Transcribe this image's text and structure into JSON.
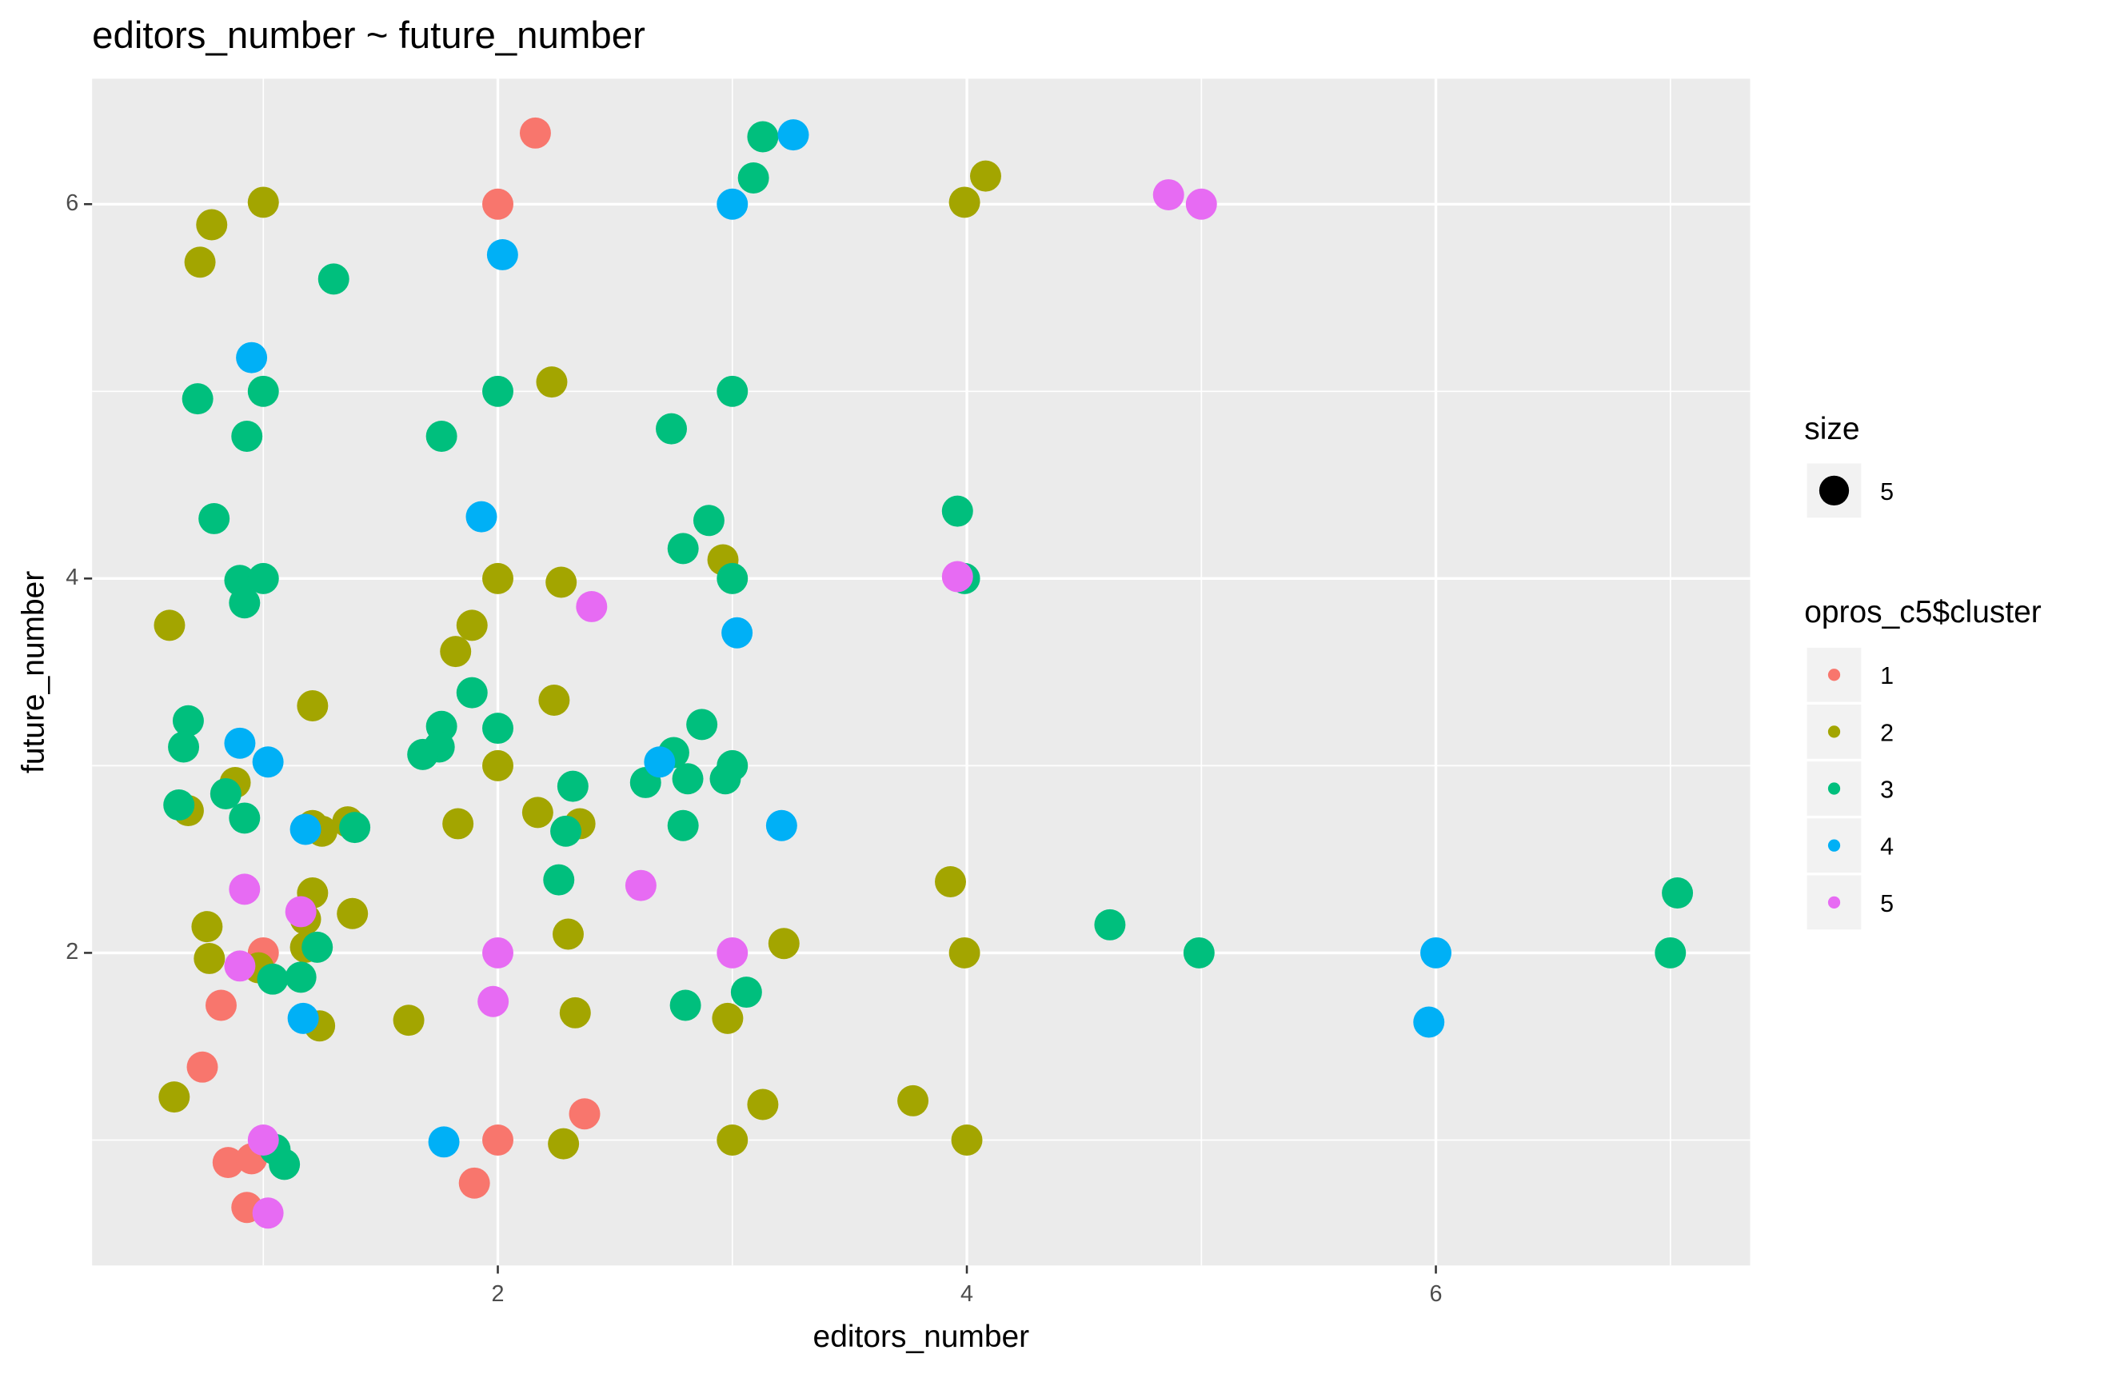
{
  "chart_data": {
    "type": "scatter",
    "title": "editors_number ~ future_number",
    "x_label": "editors_number",
    "y_label": "future_number",
    "xlim": [
      0.27,
      7.34
    ],
    "ylim": [
      0.33,
      6.67
    ],
    "xticks": [
      2,
      4,
      6
    ],
    "yticks": [
      2,
      4,
      6
    ],
    "grid": true,
    "size_legend": {
      "title": "size",
      "value": 5
    },
    "legend_title": "opros_c5$cluster",
    "series": [
      {
        "name": "1",
        "color": "#F8766D",
        "x": [
          2.16,
          2.0,
          1.0,
          0.82,
          0.74,
          0.85,
          0.95,
          0.93,
          1.9,
          2.0,
          2.37
        ],
        "values": [
          6.38,
          6.0,
          2.0,
          1.72,
          1.39,
          0.88,
          0.9,
          0.64,
          0.77,
          1.0,
          1.14
        ]
      },
      {
        "name": "2",
        "color": "#A3A500",
        "x": [
          1.0,
          0.78,
          0.73,
          0.6,
          2.23,
          2.0,
          2.27,
          1.89,
          1.82,
          1.21,
          2.24,
          2.0,
          0.88,
          0.68,
          2.17,
          1.83,
          2.35,
          1.21,
          1.25,
          1.36,
          1.21,
          1.38,
          0.76,
          0.77,
          1.18,
          1.18,
          0.98,
          1.24,
          1.62,
          2.33,
          2.3,
          2.96,
          3.99,
          4.08,
          3.93,
          3.99,
          3.22,
          2.98,
          3.0,
          3.13,
          3.77,
          4.0,
          2.28,
          0.62
        ],
        "values": [
          6.01,
          5.89,
          5.69,
          3.75,
          5.05,
          4.0,
          3.98,
          3.75,
          3.61,
          3.32,
          3.35,
          3.0,
          2.91,
          2.76,
          2.75,
          2.69,
          2.69,
          2.68,
          2.65,
          2.7,
          2.32,
          2.21,
          2.14,
          1.97,
          2.18,
          2.03,
          1.92,
          1.61,
          1.64,
          1.68,
          2.1,
          4.1,
          6.01,
          6.15,
          2.38,
          2.0,
          2.05,
          1.65,
          1.0,
          1.19,
          1.21,
          1.0,
          0.98,
          1.23
        ]
      },
      {
        "name": "3",
        "color": "#00BF7D",
        "x": [
          1.3,
          0.72,
          1.0,
          0.93,
          0.79,
          0.9,
          1.0,
          0.92,
          0.68,
          0.66,
          0.64,
          0.84,
          0.92,
          1.39,
          1.23,
          1.04,
          1.16,
          1.05,
          1.09,
          1.76,
          2.0,
          1.89,
          1.76,
          1.75,
          1.68,
          2.0,
          2.32,
          2.29,
          2.26,
          2.74,
          2.79,
          2.9,
          3.0,
          3.0,
          2.87,
          2.75,
          2.63,
          2.81,
          2.97,
          3.0,
          2.79,
          2.8,
          3.06,
          3.09,
          3.13,
          3.96,
          3.99,
          4.61,
          4.99,
          7.03,
          7.0
        ],
        "values": [
          5.6,
          4.96,
          5.0,
          4.76,
          4.32,
          3.99,
          4.0,
          3.87,
          3.24,
          3.1,
          2.79,
          2.85,
          2.72,
          2.67,
          2.03,
          1.86,
          1.87,
          0.95,
          0.87,
          4.76,
          5.0,
          3.39,
          3.21,
          3.1,
          3.06,
          3.2,
          2.89,
          2.65,
          2.39,
          4.8,
          4.16,
          4.31,
          5.0,
          4.0,
          3.22,
          3.07,
          2.91,
          2.93,
          2.93,
          3.0,
          2.68,
          1.72,
          1.79,
          6.14,
          6.36,
          4.36,
          4.0,
          2.15,
          2.0,
          2.32,
          2.0
        ]
      },
      {
        "name": "4",
        "color": "#00B0F6",
        "x": [
          0.95,
          0.9,
          1.02,
          1.18,
          1.17,
          2.02,
          1.93,
          1.77,
          3.0,
          3.26,
          3.02,
          2.69,
          3.21,
          6.0,
          5.97
        ],
        "values": [
          5.18,
          3.12,
          3.02,
          2.66,
          1.65,
          5.73,
          4.33,
          0.99,
          6.0,
          6.37,
          3.71,
          3.02,
          2.68,
          2.0,
          1.63
        ]
      },
      {
        "name": "5",
        "color": "#E76BF3",
        "x": [
          4.86,
          5.0,
          3.96,
          2.4,
          2.61,
          0.92,
          1.16,
          0.9,
          2.0,
          1.98,
          3.0,
          1.0,
          1.02
        ],
        "values": [
          6.05,
          6.0,
          4.01,
          3.85,
          2.36,
          2.34,
          2.22,
          1.93,
          2.0,
          1.74,
          2.0,
          1.0,
          0.61
        ]
      }
    ]
  }
}
